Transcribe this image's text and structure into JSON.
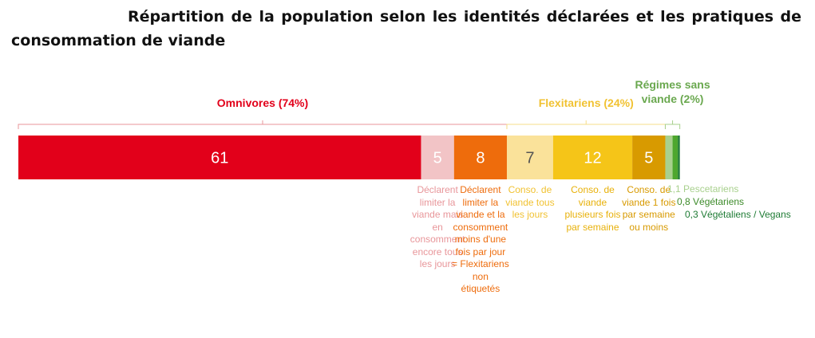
{
  "title": "Répartition de la population selon les identités déclarées et les pratiques de consommation de viande",
  "chart_data": {
    "type": "bar",
    "orientation": "horizontal-stacked",
    "categories_groups": [
      {
        "label": "Omnivores (74%)",
        "color": "#e2001a"
      },
      {
        "label": "Flexitariens (24%)",
        "color": "#f1c232"
      },
      {
        "label": "Régimes sans viande (2%)",
        "color": "#6aa84f"
      }
    ],
    "segments": [
      {
        "value": 61,
        "label": "61",
        "color": "#e2001a",
        "text_color": "#ffffff",
        "desc": "Déclarent limiter la viande mais en consomment encore tous les jours",
        "desc_color": "#e8969a"
      },
      {
        "value": 5,
        "label": "5",
        "color": "#f2c4c6",
        "text_color": "#ffffff",
        "desc": "",
        "desc_color": "#e8969a"
      },
      {
        "value": 8,
        "label": "8",
        "color": "#ee6c0c",
        "text_color": "#ffffff",
        "desc": "Déclarent limiter la viande et la consomment moins d'une fois par jour = Flexitariens non étiquetés",
        "desc_color": "#ee6c0c"
      },
      {
        "value": 7,
        "label": "7",
        "color": "#fae29a",
        "text_color": "#555555",
        "desc": "Conso. de viande tous les jours",
        "desc_color": "#f1c232"
      },
      {
        "value": 12,
        "label": "12",
        "color": "#f5c518",
        "text_color": "#ffffff",
        "desc": "Conso. de viande plusieurs fois par semaine",
        "desc_color": "#e8b10a"
      },
      {
        "value": 5,
        "label": "5",
        "color": "#d89a00",
        "text_color": "#ffffff",
        "desc": "Conso. de viande 1 fois par semaine ou moins",
        "desc_color": "#d89a00"
      },
      {
        "value": 1.1,
        "label": "",
        "color": "#a8d08d",
        "desc": "1,1 Pescetariens",
        "desc_color": "#a8d08d"
      },
      {
        "value": 0.8,
        "label": "",
        "color": "#4ea72e",
        "desc": "0,8 Végétariens",
        "desc_color": "#3d8b2a"
      },
      {
        "value": 0.3,
        "label": "",
        "color": "#1e7b34",
        "desc": "0,3 Végétaliens / Vegans",
        "desc_color": "#1e7b34"
      }
    ]
  }
}
